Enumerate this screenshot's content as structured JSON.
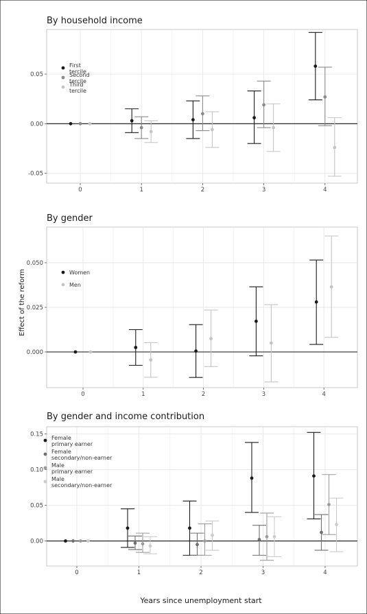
{
  "figure": {
    "ylabel": "Effect of the reform",
    "xlabel": "Years since unemployment start"
  },
  "chart_data": [
    {
      "type": "scatter",
      "title": "By household income",
      "x": [
        0,
        1,
        2,
        3,
        4
      ],
      "x_ticks": [
        "0",
        "1",
        "2",
        "3",
        "4"
      ],
      "y_ticks": [
        "0.05",
        "0.00",
        "-0.05"
      ],
      "y_tick_values": [
        0.05,
        0.0,
        -0.05
      ],
      "ylim": [
        -0.06,
        0.095
      ],
      "legend_placement": "top-left inside",
      "series": [
        {
          "name": "First tercile",
          "legend_lines": [
            "First",
            "tercile"
          ],
          "color": "#1a1a1a",
          "values": [
            0.0,
            0.003,
            0.004,
            0.006,
            0.058
          ],
          "ci_low": [
            0.0,
            -0.009,
            -0.015,
            -0.02,
            0.024
          ],
          "ci_high": [
            0.0,
            0.015,
            0.023,
            0.033,
            0.092
          ]
        },
        {
          "name": "Second tercile",
          "legend_lines": [
            "Second",
            "tercile"
          ],
          "color": "#8a8a8a",
          "values": [
            0.0,
            -0.004,
            0.01,
            0.019,
            0.027
          ],
          "ci_low": [
            0.0,
            -0.015,
            -0.007,
            -0.004,
            -0.002
          ],
          "ci_high": [
            0.0,
            0.007,
            0.028,
            0.043,
            0.057
          ]
        },
        {
          "name": "Third tercile",
          "legend_lines": [
            "Third",
            "tercile"
          ],
          "color": "#c4c4c4",
          "values": [
            0.0,
            -0.008,
            -0.006,
            -0.004,
            -0.024
          ],
          "ci_low": [
            0.0,
            -0.019,
            -0.024,
            -0.028,
            -0.053
          ],
          "ci_high": [
            0.0,
            0.003,
            0.012,
            0.02,
            0.006
          ]
        }
      ]
    },
    {
      "type": "scatter",
      "title": "By gender",
      "x": [
        0,
        1,
        2,
        3,
        4
      ],
      "x_ticks": [
        "0",
        "1",
        "2",
        "3",
        "4"
      ],
      "y_ticks": [
        "0.050",
        "0.025",
        "0.000"
      ],
      "y_tick_values": [
        0.05,
        0.025,
        0.0
      ],
      "ylim": [
        -0.02,
        0.07
      ],
      "legend_placement": "top-left inside",
      "series": [
        {
          "name": "Women",
          "legend_lines": [
            "Women"
          ],
          "color": "#1a1a1a",
          "values": [
            0.0,
            0.0025,
            0.0005,
            0.0172,
            0.028
          ],
          "ci_low": [
            0.0,
            -0.0075,
            -0.0143,
            -0.0022,
            0.0042
          ],
          "ci_high": [
            0.0,
            0.0125,
            0.0153,
            0.0365,
            0.0515
          ]
        },
        {
          "name": "Men",
          "legend_lines": [
            "Men"
          ],
          "color": "#c4c4c4",
          "values": [
            0.0,
            -0.0045,
            0.0075,
            0.005,
            0.0365
          ],
          "ci_low": [
            0.0,
            -0.0142,
            -0.0082,
            -0.0168,
            0.0082
          ],
          "ci_high": [
            0.0,
            0.0052,
            0.0235,
            0.0265,
            0.065
          ]
        }
      ]
    },
    {
      "type": "scatter",
      "title": "By gender and income contribution",
      "x": [
        0,
        1,
        2,
        3,
        4
      ],
      "x_ticks": [
        "0",
        "1",
        "2",
        "3",
        "4"
      ],
      "y_ticks": [
        "0.15",
        "0.10",
        "0.05",
        "0.00"
      ],
      "y_tick_values": [
        0.15,
        0.1,
        0.05,
        0.0
      ],
      "ylim": [
        -0.035,
        0.16
      ],
      "legend_placement": "top-left inside",
      "series": [
        {
          "name": "Female primary earner",
          "legend_lines": [
            "Female",
            "primary earner"
          ],
          "color": "#1a1a1a",
          "values": [
            0.0,
            0.018,
            0.018,
            0.088,
            0.091
          ],
          "ci_low": [
            0.0,
            -0.009,
            -0.02,
            0.04,
            0.031
          ],
          "ci_high": [
            0.0,
            0.045,
            0.056,
            0.138,
            0.152
          ]
        },
        {
          "name": "Female secondary/non-earner",
          "legend_lines": [
            "Female",
            "secondary/non-earner"
          ],
          "color": "#6f6f6f",
          "values": [
            0.0,
            -0.003,
            -0.005,
            0.002,
            0.012
          ],
          "ci_low": [
            0.0,
            -0.012,
            -0.02,
            -0.02,
            -0.013
          ],
          "ci_high": [
            0.0,
            0.007,
            0.011,
            0.022,
            0.037
          ]
        },
        {
          "name": "Male primary earner",
          "legend_lines": [
            "Male",
            "primary earner"
          ],
          "color": "#9c9c9c",
          "values": [
            0.0,
            -0.004,
            0.0,
            0.006,
            0.051
          ],
          "ci_low": [
            0.0,
            -0.016,
            -0.02,
            -0.027,
            0.009
          ],
          "ci_high": [
            0.0,
            0.011,
            0.024,
            0.039,
            0.093
          ]
        },
        {
          "name": "Male secondary/non-earner",
          "legend_lines": [
            "Male",
            "secondary/non-earner"
          ],
          "color": "#cccccc",
          "values": [
            0.0,
            -0.007,
            0.008,
            0.006,
            0.023
          ],
          "ci_low": [
            0.0,
            -0.018,
            -0.013,
            -0.022,
            -0.015
          ],
          "ci_high": [
            0.0,
            0.006,
            0.028,
            0.034,
            0.06
          ]
        }
      ]
    }
  ]
}
